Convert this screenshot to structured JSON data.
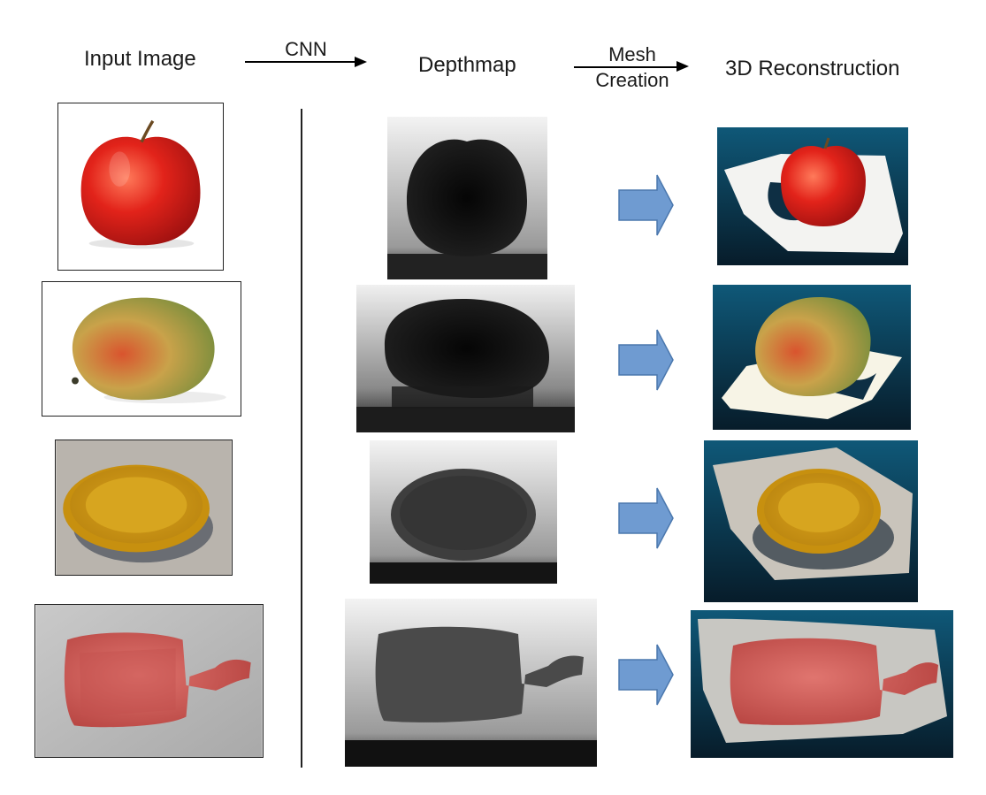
{
  "headers": {
    "input_image": "Input Image",
    "depthmap": "Depthmap",
    "reconstruction": "3D Reconstruction"
  },
  "arrows": {
    "cnn": "CNN",
    "mesh_line1": "Mesh",
    "mesh_line2": "Creation"
  },
  "colors": {
    "fat_arrow_fill": "#6f9bd1",
    "fat_arrow_stroke": "#4b78ae",
    "recon_background": "#0d4a6b",
    "divider": "#222222"
  },
  "rows": [
    {
      "object": "apple",
      "input_icon": "apple-photo",
      "depth_icon": "apple-depthmap",
      "recon_icon": "apple-3d-reconstruction"
    },
    {
      "object": "mango",
      "input_icon": "mango-photo",
      "depth_icon": "mango-depthmap",
      "recon_icon": "mango-3d-reconstruction"
    },
    {
      "object": "plate",
      "input_icon": "plate-photo",
      "depth_icon": "plate-depthmap",
      "recon_icon": "plate-3d-reconstruction"
    },
    {
      "object": "hot-water-bottle",
      "input_icon": "hot-water-bottle-photo",
      "depth_icon": "hot-water-bottle-depthmap",
      "recon_icon": "hot-water-bottle-3d-reconstruction"
    }
  ]
}
